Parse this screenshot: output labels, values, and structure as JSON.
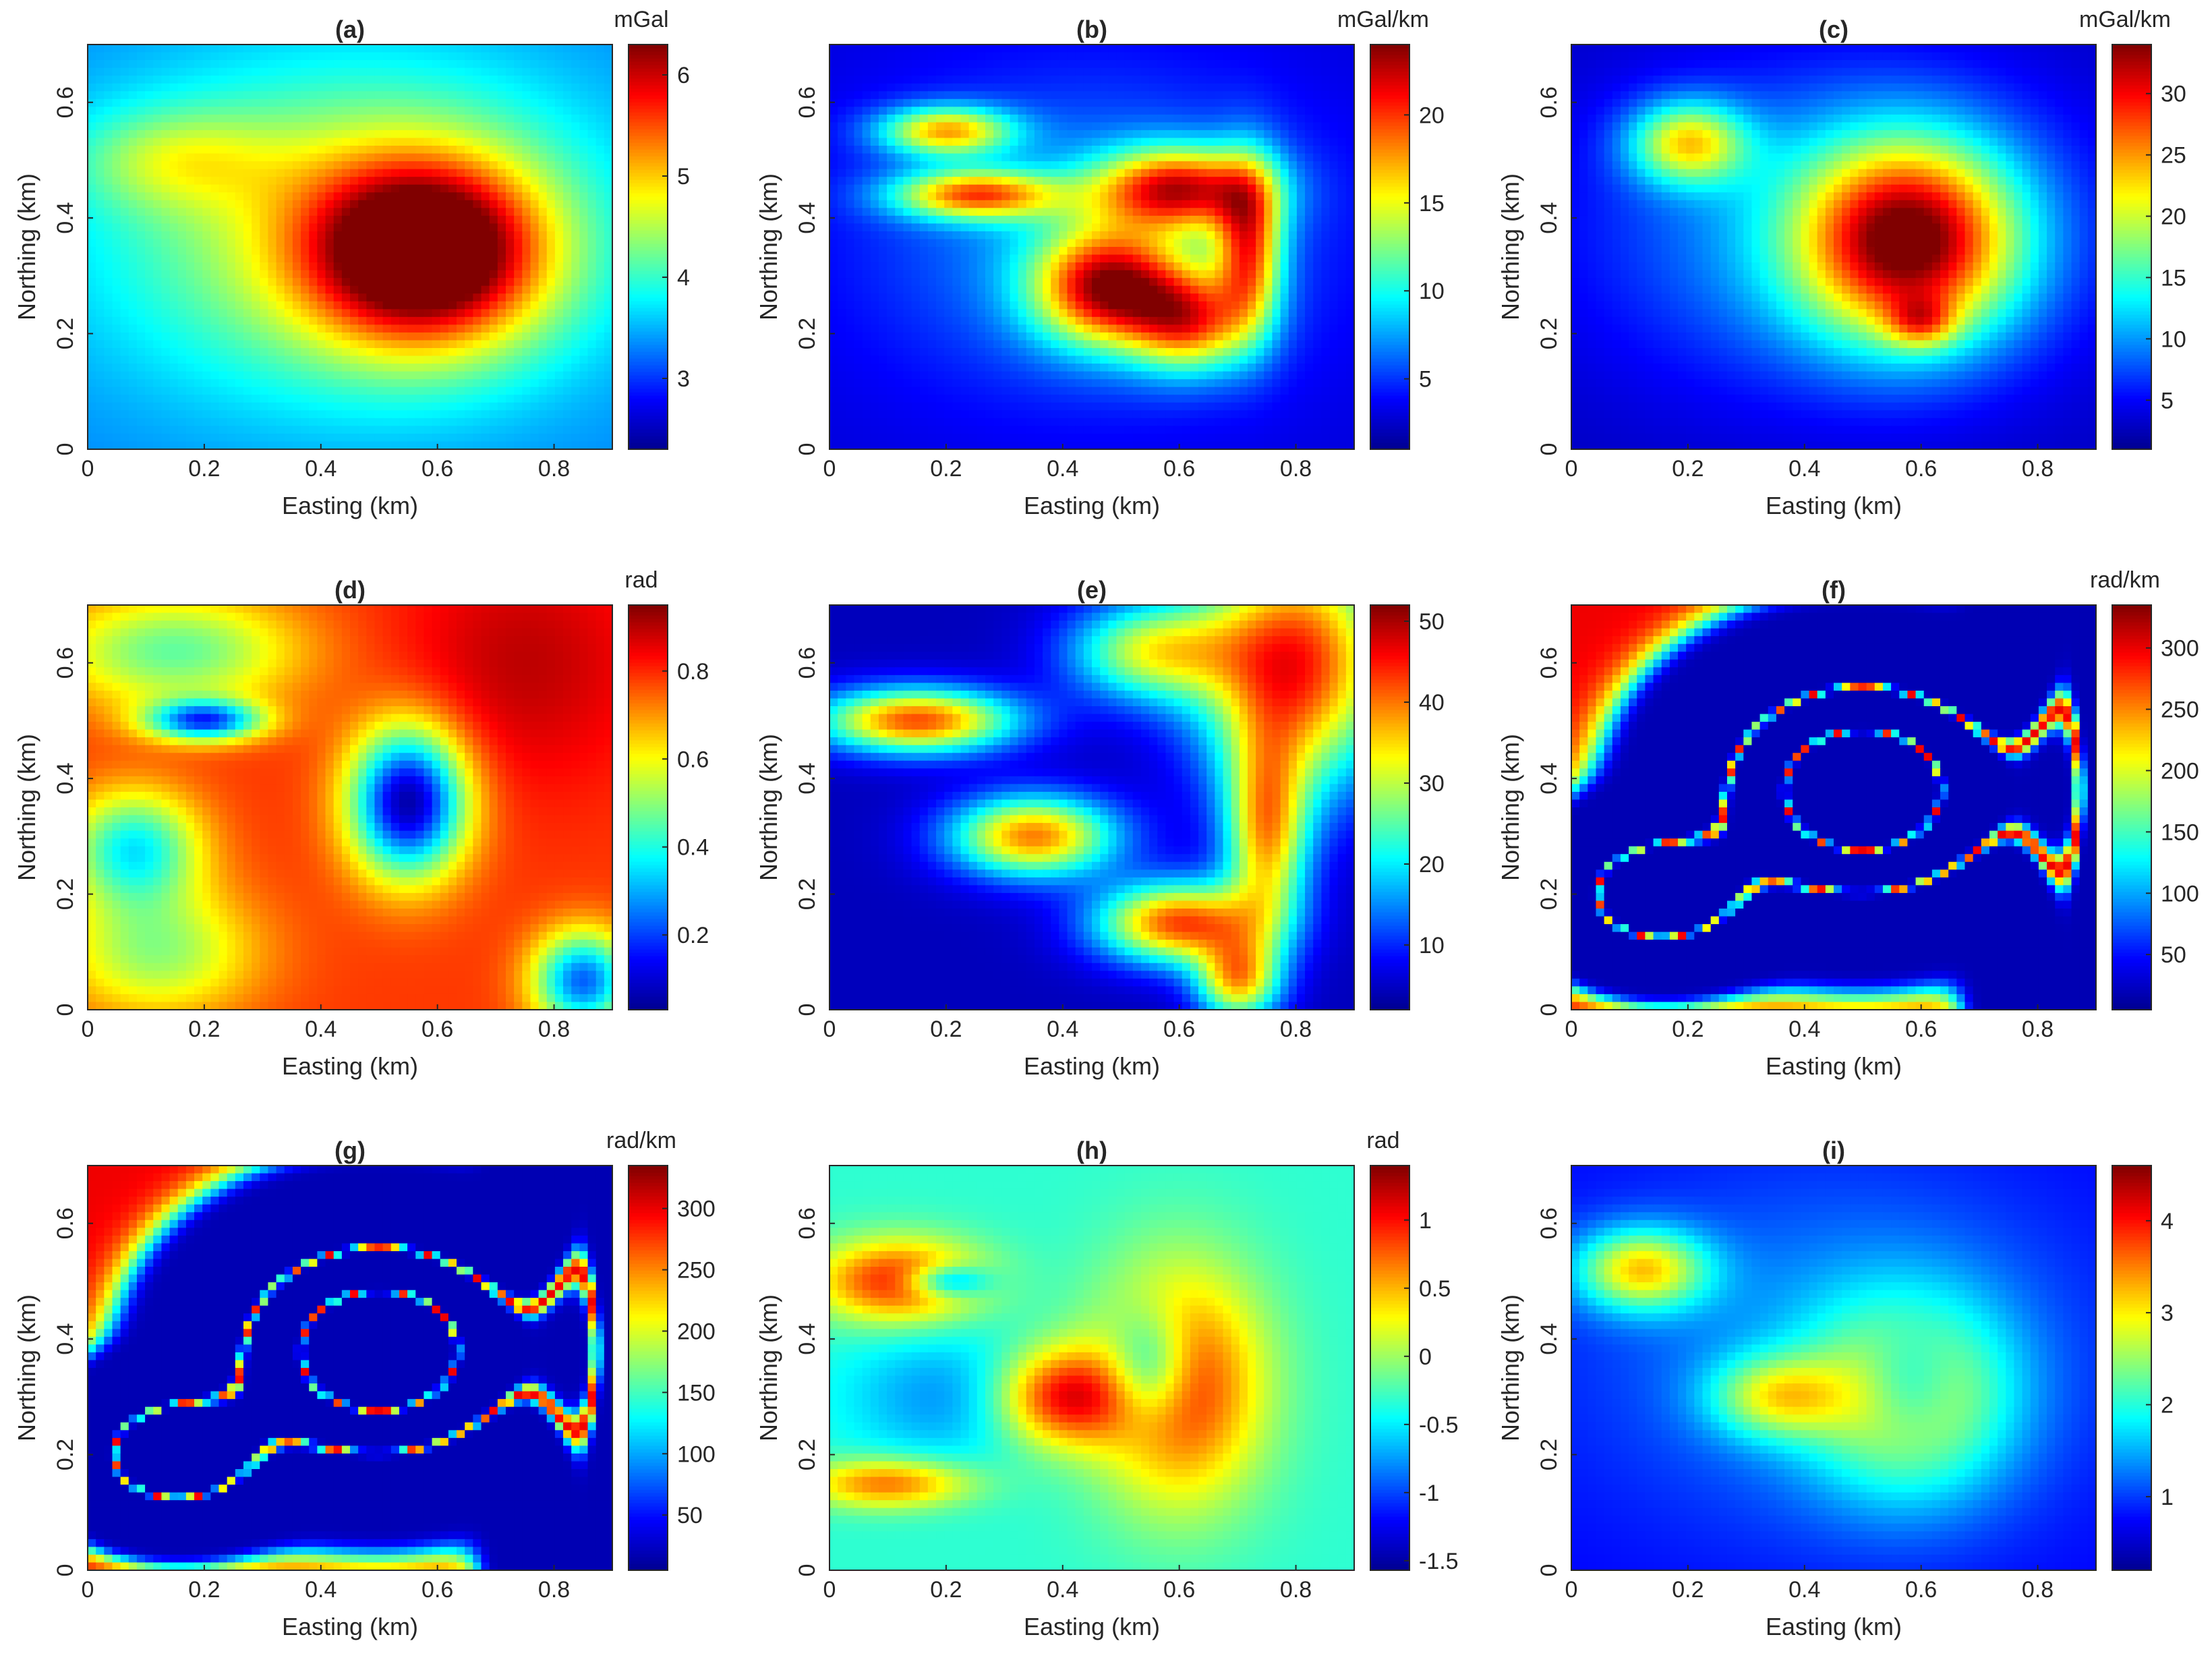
{
  "figure": {
    "colormap": [
      "#00008f",
      "#0000ff",
      "#0080ff",
      "#00ffff",
      "#80ff80",
      "#ffff00",
      "#ff8000",
      "#ff0000",
      "#800000"
    ],
    "axis_color": "#262626"
  },
  "chart_data": [
    {
      "panel": "a",
      "type": "heatmap",
      "title": "(a)",
      "unit": "mGal",
      "xlabel": "Easting (km)",
      "ylabel": "Northing (km)",
      "xlim": [
        0,
        0.9
      ],
      "ylim": [
        0,
        0.7
      ],
      "xticks": [
        0,
        0.2,
        0.4,
        0.6,
        0.8
      ],
      "xtick_labels": [
        "0",
        "0.2",
        "0.4",
        "0.6",
        "0.8"
      ],
      "yticks": [
        0,
        0.2,
        0.4,
        0.6
      ],
      "ytick_labels": [
        "0",
        "0.2",
        "0.4",
        "0.6"
      ],
      "clim": [
        2.3,
        6.3
      ],
      "cticks": [
        3,
        4,
        5,
        6
      ],
      "ctick_labels": [
        "3",
        "4",
        "5",
        "6"
      ],
      "background": 0.25,
      "pattern": "blobs",
      "features": [
        {
          "x": 0.58,
          "y": 0.34,
          "sx": 0.14,
          "sy": 0.11,
          "a": 0.75
        },
        {
          "x": 0.45,
          "y": 0.38,
          "sx": 0.3,
          "sy": 0.2,
          "a": 0.35
        },
        {
          "x": 0.15,
          "y": 0.5,
          "sx": 0.12,
          "sy": 0.06,
          "a": 0.2
        }
      ]
    },
    {
      "panel": "b",
      "type": "heatmap",
      "title": "(b)",
      "unit": "mGal/km",
      "xlabel": "Easting (km)",
      "ylabel": "Northing (km)",
      "xlim": [
        0,
        0.9
      ],
      "ylim": [
        0,
        0.7
      ],
      "xticks": [
        0,
        0.2,
        0.4,
        0.6,
        0.8
      ],
      "xtick_labels": [
        "0",
        "0.2",
        "0.4",
        "0.6",
        "0.8"
      ],
      "yticks": [
        0,
        0.2,
        0.4,
        0.6
      ],
      "ytick_labels": [
        "0",
        "0.2",
        "0.4",
        "0.6"
      ],
      "clim": [
        1,
        24
      ],
      "cticks": [
        5,
        10,
        15,
        20
      ],
      "ctick_labels": [
        "5",
        "10",
        "15",
        "20"
      ],
      "background": 0.08,
      "pattern": "blobs",
      "features": [
        {
          "x": 0.48,
          "y": 0.28,
          "sx": 0.09,
          "sy": 0.07,
          "a": 0.75
        },
        {
          "x": 0.62,
          "y": 0.22,
          "sx": 0.07,
          "sy": 0.06,
          "a": 0.55
        },
        {
          "x": 0.6,
          "y": 0.45,
          "sx": 0.1,
          "sy": 0.05,
          "a": 0.7
        },
        {
          "x": 0.2,
          "y": 0.55,
          "sx": 0.08,
          "sy": 0.03,
          "a": 0.55
        },
        {
          "x": 0.25,
          "y": 0.44,
          "sx": 0.1,
          "sy": 0.03,
          "a": 0.6
        },
        {
          "x": 0.72,
          "y": 0.35,
          "sx": 0.04,
          "sy": 0.1,
          "a": 0.6
        },
        {
          "x": 0.45,
          "y": 0.37,
          "sx": 0.28,
          "sy": 0.2,
          "a": 0.2
        }
      ]
    },
    {
      "panel": "c",
      "type": "heatmap",
      "title": "(c)",
      "unit": "mGal/km",
      "xlabel": "Easting (km)",
      "ylabel": "Northing (km)",
      "xlim": [
        0,
        0.9
      ],
      "ylim": [
        0,
        0.7
      ],
      "xticks": [
        0,
        0.2,
        0.4,
        0.6,
        0.8
      ],
      "xtick_labels": [
        "0",
        "0.2",
        "0.4",
        "0.6",
        "0.8"
      ],
      "yticks": [
        0,
        0.2,
        0.4,
        0.6
      ],
      "ytick_labels": [
        "0",
        "0.2",
        "0.4",
        "0.6"
      ],
      "clim": [
        1,
        34
      ],
      "cticks": [
        5,
        10,
        15,
        20,
        25,
        30
      ],
      "ctick_labels": [
        "5",
        "10",
        "15",
        "20",
        "25",
        "30"
      ],
      "background": 0.05,
      "pattern": "blobs",
      "features": [
        {
          "x": 0.58,
          "y": 0.36,
          "sx": 0.13,
          "sy": 0.12,
          "a": 0.8
        },
        {
          "x": 0.6,
          "y": 0.22,
          "sx": 0.04,
          "sy": 0.03,
          "a": 0.3
        },
        {
          "x": 0.2,
          "y": 0.53,
          "sx": 0.07,
          "sy": 0.05,
          "a": 0.5
        },
        {
          "x": 0.45,
          "y": 0.38,
          "sx": 0.3,
          "sy": 0.2,
          "a": 0.25
        }
      ]
    },
    {
      "panel": "d",
      "type": "heatmap",
      "title": "(d)",
      "unit": "rad",
      "xlabel": "Easting (km)",
      "ylabel": "Northing (km)",
      "xlim": [
        0,
        0.9
      ],
      "ylim": [
        0,
        0.7
      ],
      "xticks": [
        0,
        0.2,
        0.4,
        0.6,
        0.8
      ],
      "xtick_labels": [
        "0",
        "0.2",
        "0.4",
        "0.6",
        "0.8"
      ],
      "yticks": [
        0,
        0.2,
        0.4,
        0.6
      ],
      "ytick_labels": [
        "0",
        "0.2",
        "0.4",
        "0.6"
      ],
      "clim": [
        0.03,
        0.95
      ],
      "cticks": [
        0.2,
        0.4,
        0.6,
        0.8
      ],
      "ctick_labels": [
        "0.2",
        "0.4",
        "0.6",
        "0.8"
      ],
      "background": 0.82,
      "pattern": "blobs",
      "features": [
        {
          "x": 0.55,
          "y": 0.36,
          "sx": 0.07,
          "sy": 0.09,
          "a": -0.8
        },
        {
          "x": 0.2,
          "y": 0.5,
          "sx": 0.07,
          "sy": 0.025,
          "a": -0.6
        },
        {
          "x": 0.08,
          "y": 0.28,
          "sx": 0.08,
          "sy": 0.07,
          "a": -0.45
        },
        {
          "x": 0.15,
          "y": 0.62,
          "sx": 0.15,
          "sy": 0.07,
          "a": -0.35
        },
        {
          "x": 0.12,
          "y": 0.1,
          "sx": 0.12,
          "sy": 0.08,
          "a": -0.3
        },
        {
          "x": 0.85,
          "y": 0.05,
          "sx": 0.06,
          "sy": 0.06,
          "a": -0.6
        },
        {
          "x": 0.75,
          "y": 0.6,
          "sx": 0.15,
          "sy": 0.15,
          "a": 0.12
        }
      ]
    },
    {
      "panel": "e",
      "type": "heatmap",
      "title": "(e)",
      "unit": "",
      "xlabel": "Easting (km)",
      "ylabel": "Northing (km)",
      "xlim": [
        0,
        0.9
      ],
      "ylim": [
        0,
        0.7
      ],
      "xticks": [
        0,
        0.2,
        0.4,
        0.6,
        0.8
      ],
      "xtick_labels": [
        "0",
        "0.2",
        "0.4",
        "0.6",
        "0.8"
      ],
      "yticks": [
        0,
        0.2,
        0.4,
        0.6
      ],
      "ytick_labels": [
        "0",
        "0.2",
        "0.4",
        "0.6"
      ],
      "clim": [
        2,
        52
      ],
      "cticks": [
        10,
        20,
        30,
        40,
        50
      ],
      "ctick_labels": [
        "10",
        "20",
        "30",
        "40",
        "50"
      ],
      "background": 0.05,
      "pattern": "blobs",
      "features": [
        {
          "x": 0.8,
          "y": 0.6,
          "sx": 0.12,
          "sy": 0.15,
          "a": 0.8
        },
        {
          "x": 0.55,
          "y": 0.62,
          "sx": 0.1,
          "sy": 0.06,
          "a": 0.5
        },
        {
          "x": 0.15,
          "y": 0.5,
          "sx": 0.12,
          "sy": 0.04,
          "a": 0.75
        },
        {
          "x": 0.35,
          "y": 0.3,
          "sx": 0.1,
          "sy": 0.05,
          "a": 0.7
        },
        {
          "x": 0.6,
          "y": 0.15,
          "sx": 0.1,
          "sy": 0.05,
          "a": 0.75
        },
        {
          "x": 0.75,
          "y": 0.3,
          "sx": 0.05,
          "sy": 0.12,
          "a": 0.6
        },
        {
          "x": 0.7,
          "y": 0.05,
          "sx": 0.05,
          "sy": 0.05,
          "a": 0.6
        }
      ]
    },
    {
      "panel": "f",
      "type": "heatmap",
      "title": "(f)",
      "unit": "rad/km",
      "xlabel": "Easting (km)",
      "ylabel": "Northing (km)",
      "xlim": [
        0,
        0.9
      ],
      "ylim": [
        0,
        0.7
      ],
      "xticks": [
        0,
        0.2,
        0.4,
        0.6,
        0.8
      ],
      "xtick_labels": [
        "0",
        "0.2",
        "0.4",
        "0.6",
        "0.8"
      ],
      "yticks": [
        0,
        0.2,
        0.4,
        0.6
      ],
      "ytick_labels": [
        "0",
        "0.2",
        "0.4",
        "0.6"
      ],
      "clim": [
        5,
        335
      ],
      "cticks": [
        50,
        100,
        150,
        200,
        250,
        300
      ],
      "ctick_labels": [
        "50",
        "100",
        "150",
        "200",
        "250",
        "300"
      ],
      "background": 0.04,
      "pattern": "ridges",
      "features": []
    },
    {
      "panel": "g",
      "type": "heatmap",
      "title": "(g)",
      "unit": "rad/km",
      "xlabel": "Easting (km)",
      "ylabel": "Northing (km)",
      "xlim": [
        0,
        0.9
      ],
      "ylim": [
        0,
        0.7
      ],
      "xticks": [
        0,
        0.2,
        0.4,
        0.6,
        0.8
      ],
      "xtick_labels": [
        "0",
        "0.2",
        "0.4",
        "0.6",
        "0.8"
      ],
      "yticks": [
        0,
        0.2,
        0.4,
        0.6
      ],
      "ytick_labels": [
        "0",
        "0.2",
        "0.4",
        "0.6"
      ],
      "clim": [
        5,
        335
      ],
      "cticks": [
        50,
        100,
        150,
        200,
        250,
        300
      ],
      "ctick_labels": [
        "50",
        "100",
        "150",
        "200",
        "250",
        "300"
      ],
      "background": 0.04,
      "pattern": "ridges",
      "features": []
    },
    {
      "panel": "h",
      "type": "heatmap",
      "title": "(h)",
      "unit": "rad",
      "xlabel": "Easting (km)",
      "ylabel": "Northing (km)",
      "xlim": [
        0,
        0.9
      ],
      "ylim": [
        0,
        0.7
      ],
      "xticks": [
        0,
        0.2,
        0.4,
        0.6,
        0.8
      ],
      "xtick_labels": [
        "0",
        "0.2",
        "0.4",
        "0.6",
        "0.8"
      ],
      "yticks": [
        0,
        0.2,
        0.4,
        0.6
      ],
      "ytick_labels": [
        "0",
        "0.2",
        "0.4",
        "0.6"
      ],
      "clim": [
        -1.57,
        1.4
      ],
      "cticks": [
        -1.5,
        -1,
        -0.5,
        0,
        0.5,
        1
      ],
      "ctick_labels": [
        "-1.5",
        "-1",
        "-0.5",
        "0",
        "0.5",
        "1"
      ],
      "background": 0.42,
      "pattern": "blobs",
      "features": [
        {
          "x": 0.6,
          "y": 0.32,
          "sx": 0.1,
          "sy": 0.14,
          "a": 0.45
        },
        {
          "x": 0.4,
          "y": 0.3,
          "sx": 0.08,
          "sy": 0.06,
          "a": 0.45
        },
        {
          "x": 0.12,
          "y": 0.5,
          "sx": 0.1,
          "sy": 0.05,
          "a": 0.45
        },
        {
          "x": 0.1,
          "y": 0.15,
          "sx": 0.1,
          "sy": 0.03,
          "a": 0.35
        },
        {
          "x": 0.55,
          "y": 0.35,
          "sx": 0.05,
          "sy": 0.07,
          "a": -0.35
        },
        {
          "x": 0.2,
          "y": 0.5,
          "sx": 0.05,
          "sy": 0.02,
          "a": -0.35
        },
        {
          "x": 0.2,
          "y": 0.3,
          "sx": 0.12,
          "sy": 0.08,
          "a": -0.15
        }
      ]
    },
    {
      "panel": "i",
      "type": "heatmap",
      "title": "(i)",
      "unit": "",
      "xlabel": "Easting (km)",
      "ylabel": "Northing (km)",
      "xlim": [
        0,
        0.9
      ],
      "ylim": [
        0,
        0.7
      ],
      "xticks": [
        0,
        0.2,
        0.4,
        0.6,
        0.8
      ],
      "xtick_labels": [
        "0",
        "0.2",
        "0.4",
        "0.6",
        "0.8"
      ],
      "yticks": [
        0,
        0.2,
        0.4,
        0.6
      ],
      "ytick_labels": [
        "0",
        "0.2",
        "0.4",
        "0.6"
      ],
      "clim": [
        0.2,
        4.6
      ],
      "cticks": [
        1,
        2,
        3,
        4
      ],
      "ctick_labels": [
        "1",
        "2",
        "3",
        "4"
      ],
      "background": 0.12,
      "pattern": "blobs",
      "features": [
        {
          "x": 0.58,
          "y": 0.3,
          "sx": 0.12,
          "sy": 0.12,
          "a": 0.45
        },
        {
          "x": 0.12,
          "y": 0.52,
          "sx": 0.08,
          "sy": 0.05,
          "a": 0.5
        },
        {
          "x": 0.35,
          "y": 0.3,
          "sx": 0.08,
          "sy": 0.05,
          "a": 0.35
        },
        {
          "x": 0.58,
          "y": 0.32,
          "sx": 0.06,
          "sy": 0.07,
          "a": -0.25
        },
        {
          "x": 0.45,
          "y": 0.38,
          "sx": 0.3,
          "sy": 0.22,
          "a": 0.15
        }
      ]
    }
  ]
}
